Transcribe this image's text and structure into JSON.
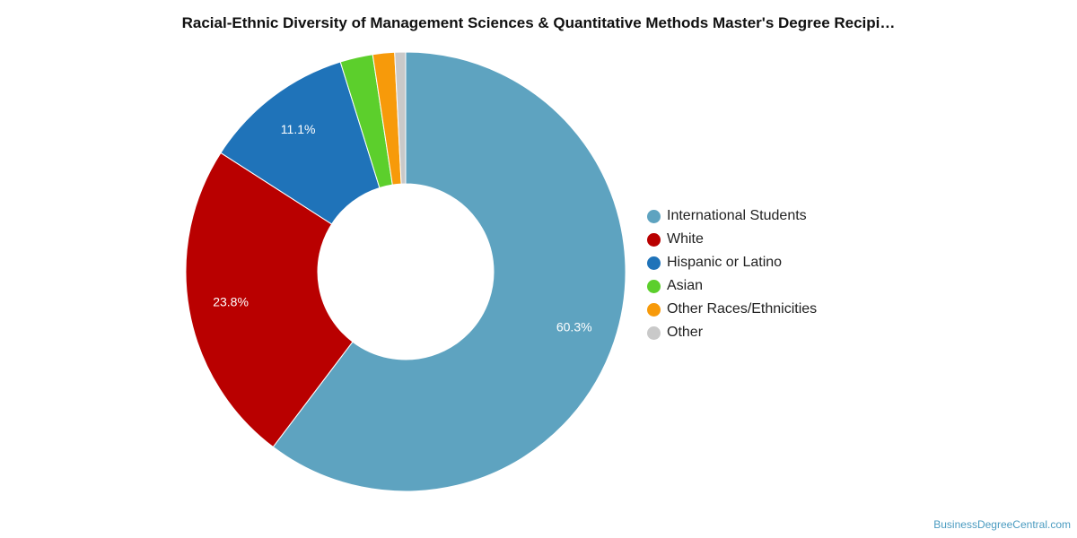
{
  "chart_data": {
    "type": "pie",
    "variant": "donut",
    "title": "Racial-Ethnic Diversity of Management Sciences & Quantitative Methods Master's Degree Recipi…",
    "legend_position": "right",
    "slices": [
      {
        "label": "International Students",
        "value": 60.3,
        "value_label": "60.3%",
        "color": "#5ea3c0"
      },
      {
        "label": "White",
        "value": 23.8,
        "value_label": "23.8%",
        "color": "#b90000"
      },
      {
        "label": "Hispanic or Latino",
        "value": 11.1,
        "value_label": "11.1%",
        "color": "#1f73b9"
      },
      {
        "label": "Asian",
        "value": 2.4,
        "value_label": "",
        "color": "#5ccf2c"
      },
      {
        "label": "Other Races/Ethnicities",
        "value": 1.6,
        "value_label": "",
        "color": "#f79a0a"
      },
      {
        "label": "Other",
        "value": 0.8,
        "value_label": "",
        "color": "#c9c9c9"
      }
    ]
  },
  "credit": "BusinessDegreeCentral.com"
}
